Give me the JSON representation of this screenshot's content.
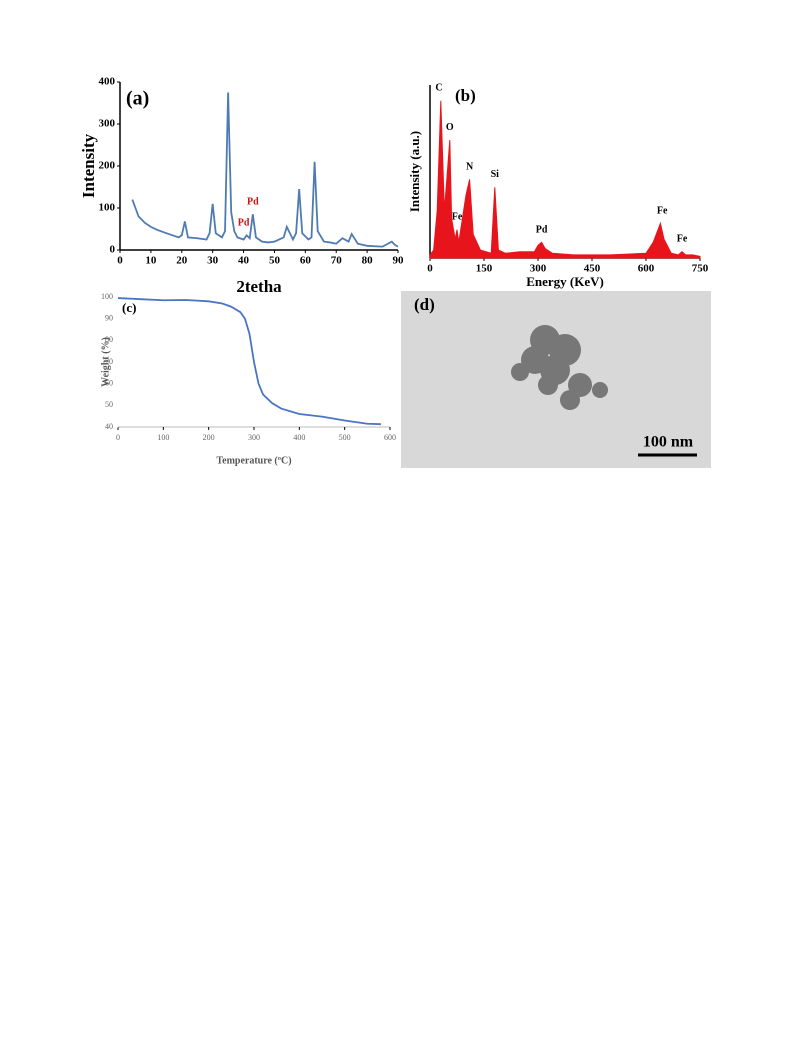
{
  "chart_data": [
    {
      "type": "line",
      "panel_label": "(a)",
      "x_label": "2tetha",
      "y_label": "Intensity",
      "color": "#4f7bb4",
      "x": [
        4,
        5,
        6,
        8,
        10,
        12,
        15,
        17,
        19,
        20,
        21,
        22,
        25,
        28,
        29,
        30,
        31,
        33,
        34,
        35,
        36,
        37,
        38,
        40,
        41,
        42,
        43,
        44,
        46,
        48,
        50,
        53,
        54,
        56,
        57,
        58,
        59,
        61,
        62,
        63,
        64,
        66,
        68,
        70,
        72,
        74,
        75,
        77,
        80,
        85,
        88,
        89,
        90
      ],
      "values": [
        120,
        100,
        80,
        65,
        55,
        48,
        40,
        35,
        30,
        35,
        68,
        30,
        28,
        25,
        40,
        110,
        40,
        30,
        45,
        375,
        90,
        45,
        30,
        25,
        35,
        28,
        85,
        30,
        20,
        18,
        20,
        30,
        55,
        25,
        40,
        145,
        40,
        25,
        30,
        210,
        45,
        20,
        18,
        15,
        28,
        20,
        38,
        15,
        10,
        8,
        20,
        12,
        8
      ],
      "xlim": [
        0,
        90
      ],
      "xticks": [
        0,
        10,
        20,
        30,
        40,
        50,
        60,
        70,
        80,
        90
      ],
      "ylim": [
        0,
        400
      ],
      "yticks": [
        0,
        100,
        200,
        300,
        400
      ],
      "annotations": [
        {
          "text": "Pd",
          "x": 43,
          "y": 100
        },
        {
          "text": "Pd",
          "x": 40,
          "y": 50
        }
      ]
    },
    {
      "type": "area",
      "panel_label": "(b)",
      "x_label": "Energy (KeV)",
      "y_label": "Intensity (a.u.)",
      "color": "#e8141c",
      "x": [
        0,
        10,
        20,
        30,
        40,
        50,
        55,
        60,
        70,
        75,
        80,
        90,
        100,
        110,
        120,
        140,
        170,
        180,
        190,
        210,
        250,
        290,
        300,
        310,
        320,
        340,
        400,
        500,
        600,
        620,
        640,
        650,
        670,
        690,
        700,
        710,
        730,
        750
      ],
      "values": [
        2,
        5,
        30,
        100,
        30,
        60,
        75,
        25,
        12,
        18,
        10,
        25,
        40,
        50,
        15,
        5,
        3,
        45,
        5,
        3,
        4,
        4,
        8,
        10,
        6,
        3,
        2,
        2,
        3,
        10,
        22,
        12,
        3,
        2,
        4,
        2,
        2,
        1
      ],
      "xlim": [
        0,
        750
      ],
      "xticks": [
        0,
        150,
        300,
        450,
        600,
        750
      ],
      "ylim": [
        0,
        110
      ],
      "annotations": [
        {
          "text": "C",
          "x": 25,
          "y": 104
        },
        {
          "text": "O",
          "x": 55,
          "y": 79
        },
        {
          "text": "Fe",
          "x": 75,
          "y": 22
        },
        {
          "text": "N",
          "x": 110,
          "y": 54
        },
        {
          "text": "Si",
          "x": 180,
          "y": 49
        },
        {
          "text": "Pd",
          "x": 310,
          "y": 14
        },
        {
          "text": "Fe",
          "x": 645,
          "y": 26
        },
        {
          "text": "Fe",
          "x": 700,
          "y": 8
        }
      ]
    },
    {
      "type": "line",
      "panel_label": "(c)",
      "x_label": "Temperature (ºC)",
      "y_label": "Weight (%)",
      "color": "#4a74c4",
      "x": [
        0,
        50,
        100,
        150,
        200,
        230,
        250,
        270,
        280,
        290,
        300,
        310,
        320,
        340,
        360,
        400,
        450,
        500,
        550,
        580
      ],
      "values": [
        99.5,
        99,
        98.5,
        98.6,
        98,
        97,
        95.5,
        93,
        90,
        83,
        70,
        60,
        55,
        51,
        48.5,
        46,
        44.8,
        43,
        41.5,
        41.3
      ],
      "xlim": [
        0,
        600
      ],
      "xticks": [
        0,
        100,
        200,
        300,
        400,
        500,
        600
      ],
      "ylim": [
        40,
        100
      ],
      "yticks": [
        40,
        50,
        60,
        70,
        80,
        90,
        100
      ]
    }
  ],
  "image": {
    "panel_label": "(d)",
    "scale_bar": "100 nm"
  }
}
